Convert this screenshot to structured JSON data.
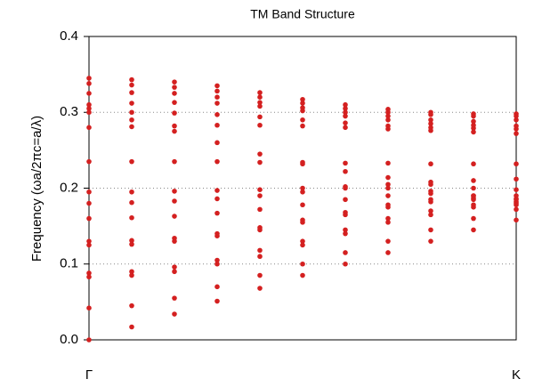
{
  "chart_data": {
    "type": "scatter",
    "title": "TM Band Structure",
    "y_label": "Frequency (ωa/2πc=a/λ)",
    "categories": [
      "Γ",
      null,
      null,
      null,
      null,
      null,
      null,
      null,
      null,
      null,
      "K"
    ],
    "color": "#d42020",
    "ylim": [
      0,
      0.4
    ],
    "yticks": [
      {
        "value": 0,
        "label": "0.0"
      },
      0.1,
      0.2,
      0.3,
      0.4
    ],
    "grid": true,
    "series": [
      {
        "values": [
          0,
          0.017,
          0.034,
          0.051,
          0.068,
          0.085,
          0.1,
          0.115,
          0.13,
          0.145,
          0.158
        ]
      },
      {
        "values": [
          0.042,
          0.045,
          0.055,
          0.07,
          0.085,
          0.1,
          0.115,
          0.13,
          0.145,
          0.16,
          0.172
        ]
      },
      {
        "values": [
          0.083,
          0.085,
          0.09,
          0.1,
          0.11,
          0.125,
          0.14,
          0.155,
          0.165,
          0.175,
          0.178
        ]
      },
      {
        "values": [
          0.088,
          0.09,
          0.096,
          0.105,
          0.118,
          0.13,
          0.145,
          0.16,
          0.17,
          0.178,
          0.182
        ]
      },
      {
        "values": [
          0.125,
          0.126,
          0.13,
          0.137,
          0.145,
          0.155,
          0.165,
          0.175,
          0.182,
          0.185,
          0.186
        ]
      },
      {
        "values": [
          0.13,
          0.131,
          0.134,
          0.14,
          0.148,
          0.158,
          0.168,
          0.178,
          0.185,
          0.19,
          0.19
        ]
      },
      {
        "values": [
          0.16,
          0.161,
          0.163,
          0.167,
          0.172,
          0.178,
          0.185,
          0.19,
          0.193,
          0.187,
          0.18
        ]
      },
      {
        "values": [
          0.18,
          0.181,
          0.183,
          0.186,
          0.19,
          0.195,
          0.2,
          0.2,
          0.196,
          0.19,
          0.185
        ]
      },
      {
        "values": [
          0.195,
          0.195,
          0.196,
          0.197,
          0.198,
          0.2,
          0.202,
          0.205,
          0.208,
          0.21,
          0.212
        ]
      },
      {
        "values": [
          0.235,
          0.235,
          0.235,
          0.235,
          0.234,
          0.234,
          0.233,
          0.233,
          0.232,
          0.232,
          0.232
        ]
      },
      {
        "values": [
          0.305,
          0.29,
          0.275,
          0.26,
          0.245,
          0.232,
          0.222,
          0.214,
          0.205,
          0.2,
          0.198
        ]
      },
      {
        "values": [
          0.28,
          0.281,
          0.282,
          0.283,
          0.283,
          0.282,
          0.28,
          0.278,
          0.276,
          0.274,
          0.272
        ]
      },
      {
        "values": [
          0.3,
          0.3,
          0.299,
          0.297,
          0.294,
          0.29,
          0.286,
          0.282,
          0.28,
          0.279,
          0.278
        ]
      },
      {
        "values": [
          0.31,
          0.312,
          0.313,
          0.312,
          0.308,
          0.302,
          0.295,
          0.29,
          0.285,
          0.283,
          0.282
        ]
      },
      {
        "values": [
          0.325,
          0.326,
          0.325,
          0.32,
          0.313,
          0.306,
          0.3,
          0.295,
          0.29,
          0.288,
          0.29
        ]
      },
      {
        "values": [
          0.338,
          0.336,
          0.333,
          0.328,
          0.32,
          0.312,
          0.305,
          0.3,
          0.297,
          0.295,
          0.295
        ]
      },
      {
        "values": [
          0.345,
          0.343,
          0.34,
          0.335,
          0.326,
          0.317,
          0.31,
          0.304,
          0.3,
          0.298,
          0.298
        ]
      }
    ]
  }
}
